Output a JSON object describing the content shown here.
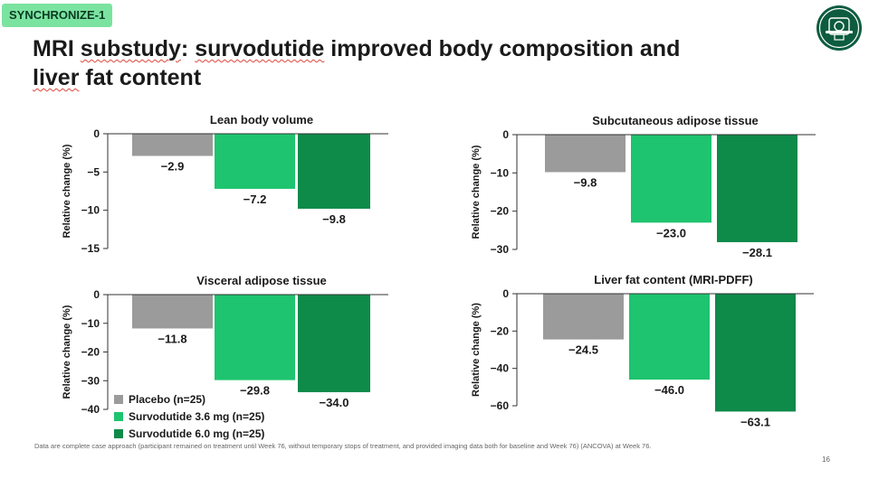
{
  "badge": "SYNCHRONIZE-1",
  "title": {
    "part1": "MRI ",
    "word1": "substudy",
    "part2": ": ",
    "word2": "survodutide",
    "part3": " improved body composition and ",
    "word3": "liver",
    "part4": " fat content"
  },
  "logo": "mri-scanner-icon",
  "colors": {
    "placebo": "#9b9b9b",
    "low_dose": "#1ec46f",
    "high_dose": "#0e8a49",
    "badge": "#7be3a0",
    "logo_bg": "#0d5c40"
  },
  "legend": [
    "Placebo (n=25)",
    "Survodutide 3.6 mg (n=25)",
    "Survodutide 6.0 mg (n=25)"
  ],
  "footnote": "Data are complete case approach (participant remained on treatment until Week 76, without temporary stops of treatment, and provided imaging data both for baseline and Week 76) (ANCOVA) at Week 76.",
  "page_number": "16",
  "chart_data": [
    {
      "type": "bar",
      "title": "Lean body volume",
      "ylabel": "Relative change (%)",
      "categories": [
        "Placebo (n=25)",
        "Survodutide 3.6 mg (n=25)",
        "Survodutide 6.0 mg (n=25)"
      ],
      "values": [
        -2.9,
        -7.2,
        -9.8
      ],
      "value_labels": [
        "−2.9",
        "−7.2",
        "−9.8"
      ],
      "ylim": [
        -15,
        0
      ],
      "yticks": [
        0,
        -5,
        -10,
        -15
      ],
      "ytick_labels": [
        "0",
        "−5",
        "−10",
        "−15"
      ]
    },
    {
      "type": "bar",
      "title": "Subcutaneous adipose tissue",
      "ylabel": "Relative change (%)",
      "categories": [
        "Placebo (n=25)",
        "Survodutide 3.6 mg (n=25)",
        "Survodutide 6.0 mg (n=25)"
      ],
      "values": [
        -9.8,
        -23.0,
        -28.1
      ],
      "value_labels": [
        "−9.8",
        "−23.0",
        "−28.1"
      ],
      "ylim": [
        -30,
        0
      ],
      "yticks": [
        0,
        -10,
        -20,
        -30
      ],
      "ytick_labels": [
        "0",
        "−10",
        "−20",
        "−30"
      ]
    },
    {
      "type": "bar",
      "title": "Visceral adipose tissue",
      "ylabel": "Relative change (%)",
      "categories": [
        "Placebo (n=25)",
        "Survodutide 3.6 mg (n=25)",
        "Survodutide 6.0 mg (n=25)"
      ],
      "values": [
        -11.8,
        -29.8,
        -34.0
      ],
      "value_labels": [
        "−11.8",
        "−29.8",
        "−34.0"
      ],
      "ylim": [
        -40,
        0
      ],
      "yticks": [
        0,
        -10,
        -20,
        -30,
        -40
      ],
      "ytick_labels": [
        "0",
        "−10",
        "−20",
        "−30",
        "−40"
      ]
    },
    {
      "type": "bar",
      "title": "Liver fat content (MRI-PDFF)",
      "ylabel": "Relative change (%)",
      "categories": [
        "Placebo (n=25)",
        "Survodutide 3.6 mg (n=25)",
        "Survodutide 6.0 mg (n=25)"
      ],
      "values": [
        -24.5,
        -46.0,
        -63.1
      ],
      "value_labels": [
        "−24.5",
        "−46.0",
        "−63.1"
      ],
      "ylim": [
        -70,
        0
      ],
      "yticks": [
        0,
        -20,
        -40,
        -60
      ],
      "ytick_labels": [
        "0",
        "−20",
        "−40",
        "−60"
      ]
    }
  ]
}
